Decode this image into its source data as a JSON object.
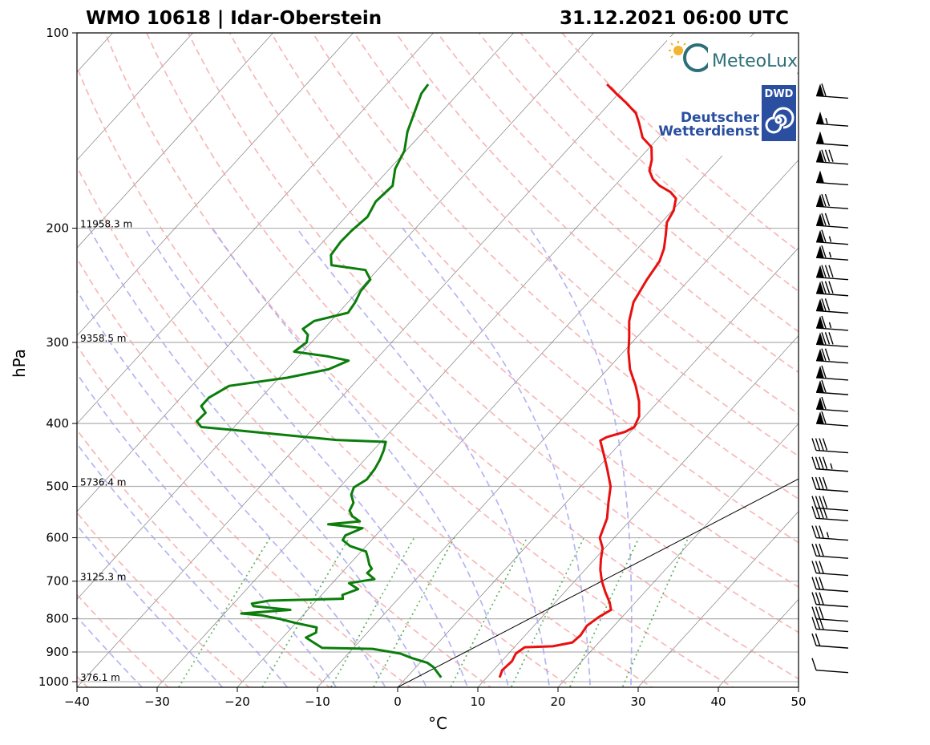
{
  "title_left": "WMO 10618 | Idar-Oberstein",
  "title_right": "31.12.2021 06:00 UTC",
  "logos": {
    "meteolux": "MeteoLux",
    "dwd_abbr": "DWD",
    "dwd_line1": "Deutscher",
    "dwd_line2": "Wetterdienst"
  },
  "colors": {
    "temperature": "#e8100f",
    "dewpoint": "#0b7d0b",
    "dry_adiabat": "#f4a0a0",
    "moist_adiabat": "#a8a8f0",
    "mixing_ratio": "#5fb05f",
    "isotherm": "#555555",
    "isobar": "#b0b0b0",
    "parcel": "#000000"
  },
  "chart_data": {
    "type": "line",
    "subtype": "skew-T log-p",
    "xlabel": "°C",
    "ylabel": "hPa",
    "xlim": [
      -40,
      50
    ],
    "ylim": [
      1020,
      100
    ],
    "x_ticks": [
      "−40",
      "−30",
      "−20",
      "−10",
      "0",
      "10",
      "20",
      "30",
      "40",
      "50"
    ],
    "y_ticks": [
      "100",
      "200",
      "300",
      "400",
      "500",
      "600",
      "700",
      "800",
      "900",
      "1000"
    ],
    "height_labels": [
      {
        "p": 200,
        "text": "11958.3 m"
      },
      {
        "p": 300,
        "text": "9358.5 m"
      },
      {
        "p": 500,
        "text": "5736.4 m"
      },
      {
        "p": 700,
        "text": "3125.3 m"
      },
      {
        "p": 1000,
        "text": "376.1 m"
      }
    ],
    "series": [
      {
        "name": "Temperature",
        "points": [
          [
            985,
            11.6
          ],
          [
            960,
            11.1
          ],
          [
            930,
            11.3
          ],
          [
            905,
            10.9
          ],
          [
            885,
            11.3
          ],
          [
            882,
            14.7
          ],
          [
            870,
            16.7
          ],
          [
            848,
            16.9
          ],
          [
            820,
            16.6
          ],
          [
            795,
            17.1
          ],
          [
            775,
            17.8
          ],
          [
            755,
            16.8
          ],
          [
            728,
            15.1
          ],
          [
            700,
            13.4
          ],
          [
            672,
            11.9
          ],
          [
            648,
            10.8
          ],
          [
            622,
            9.7
          ],
          [
            600,
            8.2
          ],
          [
            560,
            6.9
          ],
          [
            530,
            5.3
          ],
          [
            500,
            3.7
          ],
          [
            470,
            1.3
          ],
          [
            445,
            -0.9
          ],
          [
            425,
            -2.8
          ],
          [
            420,
            -2.4
          ],
          [
            412,
            -0.7
          ],
          [
            405,
            -0.1
          ],
          [
            390,
            -0.7
          ],
          [
            370,
            -2.4
          ],
          [
            350,
            -4.6
          ],
          [
            330,
            -7.2
          ],
          [
            310,
            -9.4
          ],
          [
            295,
            -10.9
          ],
          [
            278,
            -12.8
          ],
          [
            260,
            -14.4
          ],
          [
            240,
            -15.3
          ],
          [
            225,
            -15.8
          ],
          [
            215,
            -16.7
          ],
          [
            205,
            -18.0
          ],
          [
            196,
            -19.3
          ],
          [
            188,
            -19.8
          ],
          [
            180,
            -20.9
          ],
          [
            176,
            -22.3
          ],
          [
            172,
            -24.4
          ],
          [
            168,
            -26.0
          ],
          [
            163,
            -27.4
          ],
          [
            157,
            -28.3
          ],
          [
            150,
            -29.8
          ],
          [
            145,
            -32.0
          ],
          [
            138,
            -34.0
          ],
          [
            133,
            -35.6
          ],
          [
            128,
            -38.1
          ],
          [
            124,
            -40.3
          ],
          [
            120,
            -42.5
          ]
        ]
      },
      {
        "name": "Dewpoint",
        "points": [
          [
            985,
            4.3
          ],
          [
            965,
            3.1
          ],
          [
            950,
            2.2
          ],
          [
            935,
            0.9
          ],
          [
            920,
            -1.5
          ],
          [
            905,
            -3.5
          ],
          [
            890,
            -7.5
          ],
          [
            887,
            -13.9
          ],
          [
            870,
            -15.6
          ],
          [
            855,
            -17.1
          ],
          [
            840,
            -16.4
          ],
          [
            825,
            -16.9
          ],
          [
            812,
            -20.0
          ],
          [
            800,
            -22.6
          ],
          [
            790,
            -25.2
          ],
          [
            785,
            -27.9
          ],
          [
            775,
            -22.2
          ],
          [
            765,
            -27.2
          ],
          [
            758,
            -27.7
          ],
          [
            750,
            -25.9
          ],
          [
            745,
            -16.9
          ],
          [
            735,
            -17.4
          ],
          [
            720,
            -16.1
          ],
          [
            705,
            -17.9
          ],
          [
            695,
            -15.2
          ],
          [
            680,
            -16.8
          ],
          [
            670,
            -16.7
          ],
          [
            660,
            -17.5
          ],
          [
            645,
            -18.4
          ],
          [
            630,
            -19.4
          ],
          [
            618,
            -22.0
          ],
          [
            605,
            -23.6
          ],
          [
            595,
            -23.8
          ],
          [
            580,
            -22.5
          ],
          [
            572,
            -27.2
          ],
          [
            566,
            -23.6
          ],
          [
            556,
            -25.1
          ],
          [
            545,
            -26.1
          ],
          [
            530,
            -26.5
          ],
          [
            515,
            -27.7
          ],
          [
            502,
            -28.2
          ],
          [
            488,
            -27.5
          ],
          [
            470,
            -27.7
          ],
          [
            455,
            -28.1
          ],
          [
            440,
            -28.7
          ],
          [
            427,
            -29.4
          ],
          [
            424,
            -35.8
          ],
          [
            410,
            -49.1
          ],
          [
            405,
            -54.1
          ],
          [
            397,
            -55.3
          ],
          [
            385,
            -55.2
          ],
          [
            376,
            -56.5
          ],
          [
            365,
            -56.5
          ],
          [
            350,
            -55.3
          ],
          [
            340,
            -49.0
          ],
          [
            330,
            -44.8
          ],
          [
            320,
            -43.3
          ],
          [
            315,
            -46.5
          ],
          [
            310,
            -51.1
          ],
          [
            300,
            -50.6
          ],
          [
            292,
            -51.3
          ],
          [
            286,
            -52.6
          ],
          [
            278,
            -52.1
          ],
          [
            270,
            -48.8
          ],
          [
            260,
            -49.1
          ],
          [
            250,
            -49.7
          ],
          [
            240,
            -49.8
          ],
          [
            232,
            -51.5
          ],
          [
            228,
            -56.3
          ],
          [
            220,
            -57.5
          ],
          [
            210,
            -57.8
          ],
          [
            202,
            -57.7
          ],
          [
            192,
            -57.3
          ],
          [
            182,
            -58.0
          ],
          [
            172,
            -57.7
          ],
          [
            162,
            -59.3
          ],
          [
            152,
            -60.2
          ],
          [
            142,
            -62.0
          ],
          [
            132,
            -63.4
          ],
          [
            124,
            -64.6
          ],
          [
            120,
            -64.8
          ]
        ]
      }
    ],
    "dry_adiabats_theta_K": [
      -50,
      -40,
      -30,
      -20,
      -10,
      0,
      10,
      20,
      30,
      40,
      50,
      60,
      70,
      80,
      90,
      100,
      110,
      120,
      130,
      140,
      150
    ],
    "moist_adiabats_start_C": [
      -30,
      -20,
      -12,
      -6,
      0,
      5,
      10,
      15,
      20,
      25,
      30
    ],
    "mixing_ratios_gkg": [
      0.4,
      1,
      2,
      3,
      6,
      10,
      16,
      24
    ],
    "parcel_line": [
      [
        1020,
        0.0
      ],
      [
        250,
        50.0
      ]
    ],
    "wind_barbs": [
      {
        "p": 125,
        "flags": 1,
        "full": 1,
        "half": 0
      },
      {
        "p": 138,
        "flags": 1,
        "full": 0,
        "half": 1
      },
      {
        "p": 148,
        "flags": 1,
        "full": 0,
        "half": 0
      },
      {
        "p": 158,
        "flags": 1,
        "full": 3,
        "half": 0
      },
      {
        "p": 170,
        "flags": 1,
        "full": 0,
        "half": 0
      },
      {
        "p": 185,
        "flags": 1,
        "full": 2,
        "half": 0
      },
      {
        "p": 198,
        "flags": 1,
        "full": 2,
        "half": 0
      },
      {
        "p": 210,
        "flags": 1,
        "full": 1,
        "half": 1
      },
      {
        "p": 222,
        "flags": 1,
        "full": 1,
        "half": 1
      },
      {
        "p": 238,
        "flags": 1,
        "full": 3,
        "half": 0
      },
      {
        "p": 252,
        "flags": 1,
        "full": 3,
        "half": 0
      },
      {
        "p": 268,
        "flags": 1,
        "full": 2,
        "half": 0
      },
      {
        "p": 285,
        "flags": 1,
        "full": 1,
        "half": 1
      },
      {
        "p": 302,
        "flags": 1,
        "full": 3,
        "half": 0
      },
      {
        "p": 320,
        "flags": 1,
        "full": 2,
        "half": 0
      },
      {
        "p": 340,
        "flags": 1,
        "full": 1,
        "half": 0
      },
      {
        "p": 358,
        "flags": 1,
        "full": 1,
        "half": 0
      },
      {
        "p": 380,
        "flags": 1,
        "full": 1,
        "half": 0
      },
      {
        "p": 400,
        "flags": 1,
        "full": 1,
        "half": 0
      },
      {
        "p": 440,
        "flags": 0,
        "full": 4,
        "half": 0
      },
      {
        "p": 470,
        "flags": 0,
        "full": 4,
        "half": 1
      },
      {
        "p": 505,
        "flags": 0,
        "full": 4,
        "half": 0
      },
      {
        "p": 540,
        "flags": 0,
        "full": 4,
        "half": 0
      },
      {
        "p": 560,
        "flags": 0,
        "full": 4,
        "half": 0
      },
      {
        "p": 600,
        "flags": 0,
        "full": 3,
        "half": 1
      },
      {
        "p": 640,
        "flags": 0,
        "full": 3,
        "half": 0
      },
      {
        "p": 680,
        "flags": 0,
        "full": 3,
        "half": 0
      },
      {
        "p": 720,
        "flags": 0,
        "full": 3,
        "half": 0
      },
      {
        "p": 760,
        "flags": 0,
        "full": 3,
        "half": 0
      },
      {
        "p": 800,
        "flags": 0,
        "full": 3,
        "half": 0
      },
      {
        "p": 830,
        "flags": 0,
        "full": 3,
        "half": 0
      },
      {
        "p": 880,
        "flags": 0,
        "full": 2,
        "half": 0
      },
      {
        "p": 960,
        "flags": 0,
        "full": 1,
        "half": 0
      }
    ]
  }
}
